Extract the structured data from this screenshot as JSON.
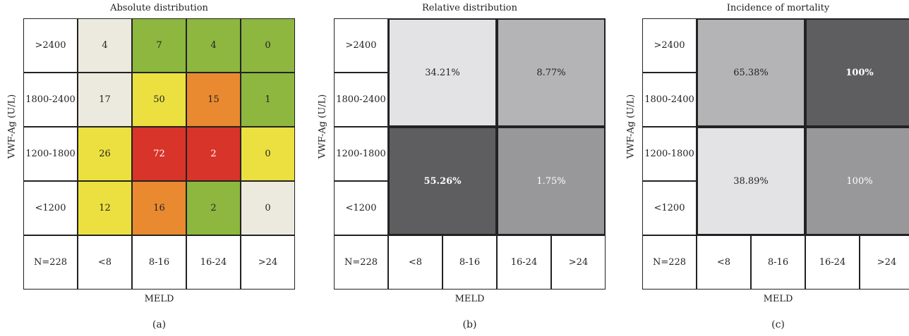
{
  "chart_data": [
    {
      "type": "heatmap",
      "panel": "(a)",
      "title": "Absolute distribution",
      "ylabel": "VWF-Ag (U/L)",
      "xlabel": "MELD",
      "corner": "N=228",
      "rows": [
        ">2400",
        "1800-2400",
        "1200-1800",
        "<1200"
      ],
      "cols": [
        "<8",
        "8-16",
        "16-24",
        ">24"
      ],
      "values": [
        [
          4,
          7,
          4,
          0
        ],
        [
          17,
          50,
          15,
          1
        ],
        [
          26,
          72,
          2,
          0
        ],
        [
          12,
          16,
          2,
          0
        ]
      ],
      "colors": [
        [
          "#ece9de",
          "#8db73f",
          "#8db73f",
          "#8db73f"
        ],
        [
          "#ece9de",
          "#ece040",
          "#e98a30",
          "#8db73f"
        ],
        [
          "#ece040",
          "#d8342a",
          "#d8342a",
          "#ece040"
        ],
        [
          "#ece040",
          "#e98a30",
          "#8db73f",
          "#ece9de"
        ]
      ],
      "text_colors": [
        [
          "#222",
          "#222",
          "#222",
          "#222"
        ],
        [
          "#222",
          "#222",
          "#222",
          "#222"
        ],
        [
          "#222",
          "#ffffff",
          "#ffffff",
          "#222"
        ],
        [
          "#222",
          "#222",
          "#222",
          "#222"
        ]
      ]
    },
    {
      "type": "heatmap",
      "panel": "(b)",
      "title": "Relative distribution",
      "ylabel": "VWF-Ag (U/L)",
      "xlabel": "MELD",
      "corner": "N=228",
      "rows": [
        ">2400",
        "1800-2400",
        "1200-1800",
        "<1200"
      ],
      "cols": [
        "<8",
        "8-16",
        "16-24",
        ">24"
      ],
      "blocks": [
        {
          "label": "34.21%",
          "value": 34.21,
          "rows": [
            0,
            1
          ],
          "cols": [
            0,
            1
          ],
          "color": "#e3e3e5",
          "text_color": "#222",
          "bold": false
        },
        {
          "label": "8.77%",
          "value": 8.77,
          "rows": [
            0,
            1
          ],
          "cols": [
            2,
            3
          ],
          "color": "#b4b4b6",
          "text_color": "#222",
          "bold": false
        },
        {
          "label": "55.26%",
          "value": 55.26,
          "rows": [
            2,
            3
          ],
          "cols": [
            0,
            1
          ],
          "color": "#5e5e60",
          "text_color": "#ffffff",
          "bold": true
        },
        {
          "label": "1.75%",
          "value": 1.75,
          "rows": [
            2,
            3
          ],
          "cols": [
            2,
            3
          ],
          "color": "#98989a",
          "text_color": "#ffffff",
          "bold": false
        }
      ]
    },
    {
      "type": "heatmap",
      "panel": "(c)",
      "title": "Incidence of mortality",
      "ylabel": "VWF-Ag (U/L)",
      "xlabel": "MELD",
      "corner": "N=228",
      "rows": [
        ">2400",
        "1800-2400",
        "1200-1800",
        "<1200"
      ],
      "cols": [
        "<8",
        "8-16",
        "16-24",
        ">24"
      ],
      "blocks": [
        {
          "label": "65.38%",
          "value": 65.38,
          "rows": [
            0,
            1
          ],
          "cols": [
            0,
            1
          ],
          "color": "#b4b4b6",
          "text_color": "#222",
          "bold": false
        },
        {
          "label": "100%",
          "value": 100,
          "rows": [
            0,
            1
          ],
          "cols": [
            2,
            3
          ],
          "color": "#5e5e60",
          "text_color": "#ffffff",
          "bold": true
        },
        {
          "label": "38.89%",
          "value": 38.89,
          "rows": [
            2,
            3
          ],
          "cols": [
            0,
            1
          ],
          "color": "#e3e3e5",
          "text_color": "#222",
          "bold": false
        },
        {
          "label": "100%",
          "value": 100,
          "rows": [
            2,
            3
          ],
          "cols": [
            2,
            3
          ],
          "color": "#98989a",
          "text_color": "#ffffff",
          "bold": false
        }
      ]
    }
  ]
}
